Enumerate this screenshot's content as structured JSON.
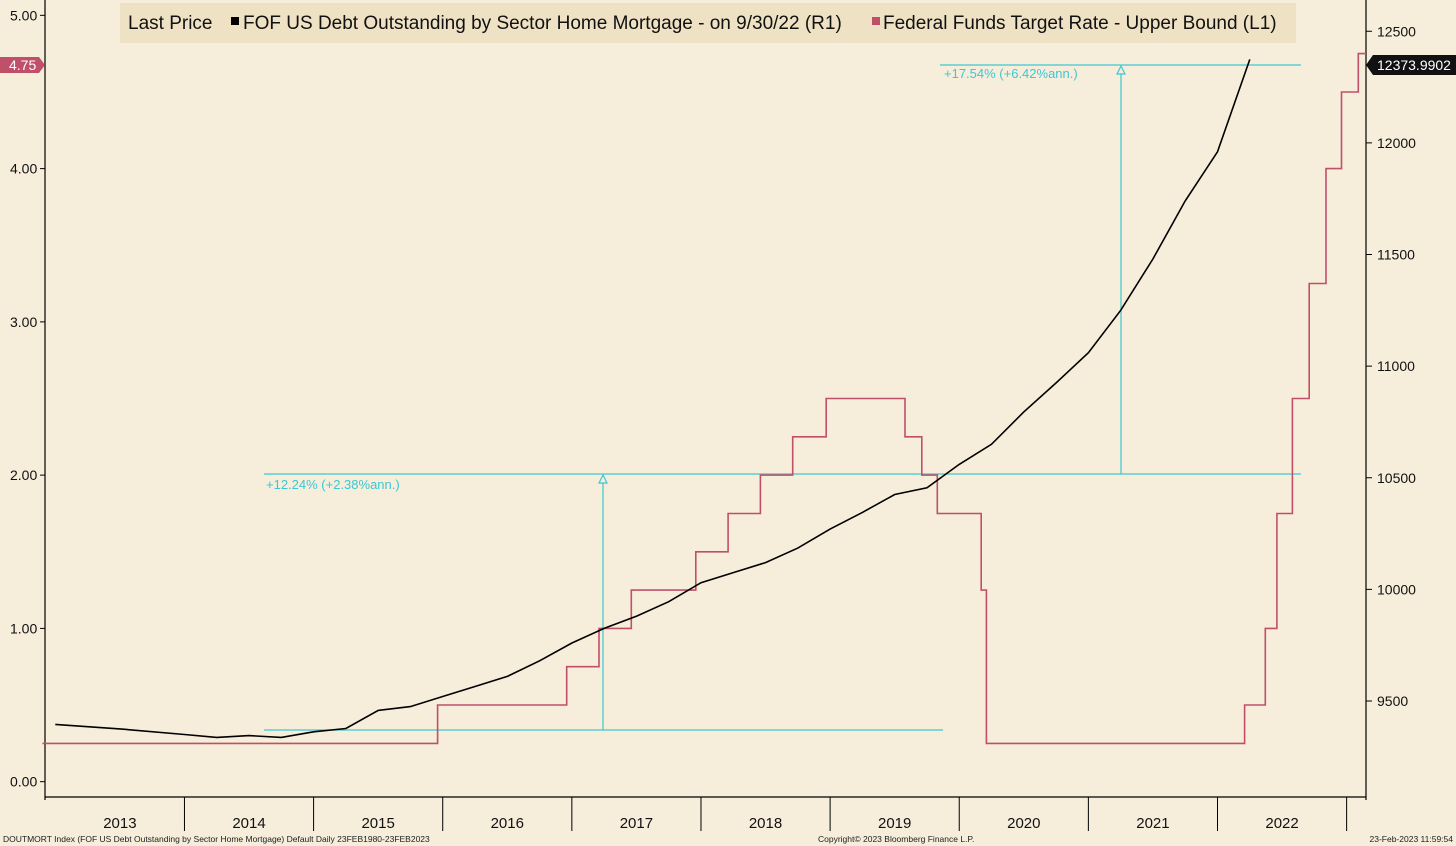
{
  "chart_data": {
    "type": "line",
    "legend": {
      "prefix": "Last Price",
      "items": [
        {
          "label": "FOF US Debt Outstanding by Sector Home Mortgage -  on 9/30/22  (R1)",
          "color": "#000000"
        },
        {
          "label": "Federal Funds Target Rate - Upper Bound  (L1)",
          "color": "#c0506a"
        }
      ]
    },
    "x_labels": [
      "2013",
      "2014",
      "2015",
      "2016",
      "2017",
      "2018",
      "2019",
      "2020",
      "2021",
      "2022"
    ],
    "left_axis": {
      "ylim": [
        -0.1,
        5.1
      ],
      "ticks": [
        "0.00",
        "1.00",
        "2.00",
        "3.00",
        "4.00",
        "5.00"
      ]
    },
    "right_axis": {
      "ylim": [
        9070,
        12640
      ],
      "ticks": [
        "9500",
        "10000",
        "10500",
        "11000",
        "11500",
        "12000",
        "12500"
      ]
    },
    "series": [
      {
        "name": "FOF US Debt Outstanding by Sector Home Mortgage",
        "axis": "right",
        "color": "#000000",
        "last_value": "12373.9902",
        "x": [
          2013.0,
          2013.5,
          2014.0,
          2014.25,
          2014.5,
          2014.75,
          2015.0,
          2015.25,
          2015.5,
          2015.75,
          2016.0,
          2016.25,
          2016.5,
          2016.75,
          2017.0,
          2017.25,
          2017.5,
          2017.75,
          2018.0,
          2018.25,
          2018.5,
          2018.75,
          2019.0,
          2019.25,
          2019.5,
          2019.75,
          2020.0,
          2020.25,
          2020.5,
          2020.75,
          2021.0,
          2021.25,
          2021.5,
          2021.75,
          2022.0,
          2022.25
        ],
        "values": [
          9395,
          9375,
          9350,
          9337,
          9345,
          9337,
          9362,
          9377,
          9458,
          9475,
          9520,
          9565,
          9610,
          9680,
          9760,
          9825,
          9880,
          9945,
          10030,
          10075,
          10120,
          10185,
          10270,
          10345,
          10425,
          10455,
          10560,
          10650,
          10795,
          10925,
          11060,
          11250,
          11480,
          11740,
          11960,
          12374
        ]
      },
      {
        "name": "Federal Funds Target Rate - Upper Bound",
        "axis": "left",
        "color": "#c0506a",
        "last_value": "4.75",
        "step": true,
        "x": [
          2012.9,
          2015.96,
          2016.96,
          2017.21,
          2017.46,
          2017.96,
          2018.21,
          2018.46,
          2018.71,
          2018.97,
          2019.58,
          2019.71,
          2019.83,
          2020.17,
          2020.21,
          2022.21,
          2022.37,
          2022.46,
          2022.58,
          2022.71,
          2022.84,
          2022.96,
          2023.09
        ],
        "values": [
          0.25,
          0.5,
          0.75,
          1.0,
          1.25,
          1.5,
          1.75,
          2.0,
          2.25,
          2.5,
          2.25,
          2.0,
          1.75,
          1.25,
          0.25,
          0.5,
          1.0,
          1.75,
          2.5,
          3.25,
          4.0,
          4.5,
          4.75
        ]
      }
    ],
    "annotations": [
      {
        "label": "+12.24% (+2.38%ann.)",
        "color": "#3cc8d4"
      },
      {
        "label": "+17.54% (+6.42%ann.)",
        "color": "#3cc8d4"
      }
    ],
    "grid": false
  },
  "footer": {
    "left": "DOUTMORT Index (FOF US Debt Outstanding by Sector Home Mortgage) Default  Daily 23FEB1980-23FEB2023",
    "center": "Copyright© 2023 Bloomberg Finance L.P.",
    "right": "23-Feb-2023 11:59:54"
  }
}
